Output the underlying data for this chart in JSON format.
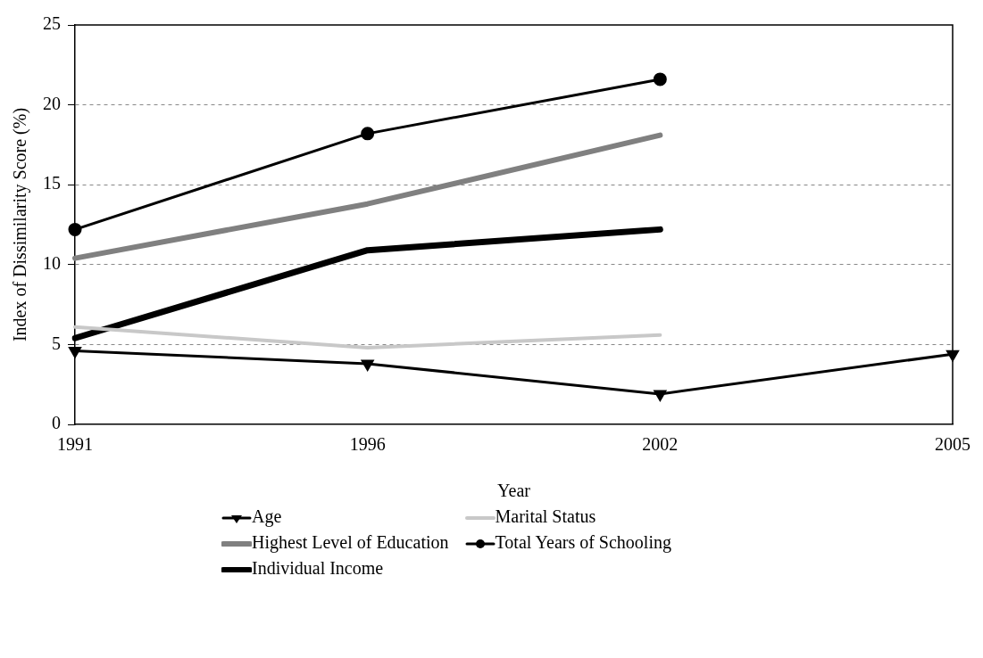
{
  "chart_data": {
    "type": "line",
    "xlabel": "Year",
    "ylabel": "Index of Dissimilarity Score (%)",
    "categories": [
      "1991",
      "1996",
      "2002",
      "2005"
    ],
    "series": [
      {
        "name": "Age",
        "color": "#000000",
        "marker": "triangle",
        "values": [
          4.6,
          3.8,
          1.9,
          4.4
        ]
      },
      {
        "name": "Marital Status",
        "color": "#c8c8c8",
        "marker": "none",
        "values": [
          6.1,
          4.8,
          5.6,
          null
        ]
      },
      {
        "name": "Highest Level of Education",
        "color": "#808080",
        "marker": "none",
        "values": [
          10.4,
          13.8,
          18.1,
          null
        ]
      },
      {
        "name": "Total Years of Schooling",
        "color": "#000000",
        "marker": "circle",
        "values": [
          12.2,
          18.2,
          21.6,
          null
        ]
      },
      {
        "name": "Individual Income",
        "color": "#000000",
        "marker": "none",
        "values": [
          5.4,
          10.9,
          12.2,
          null
        ]
      }
    ],
    "ylim": [
      0,
      25
    ],
    "yticks": [
      0,
      5,
      10,
      15,
      20,
      25
    ],
    "grid": "y",
    "legend": "bottom"
  }
}
